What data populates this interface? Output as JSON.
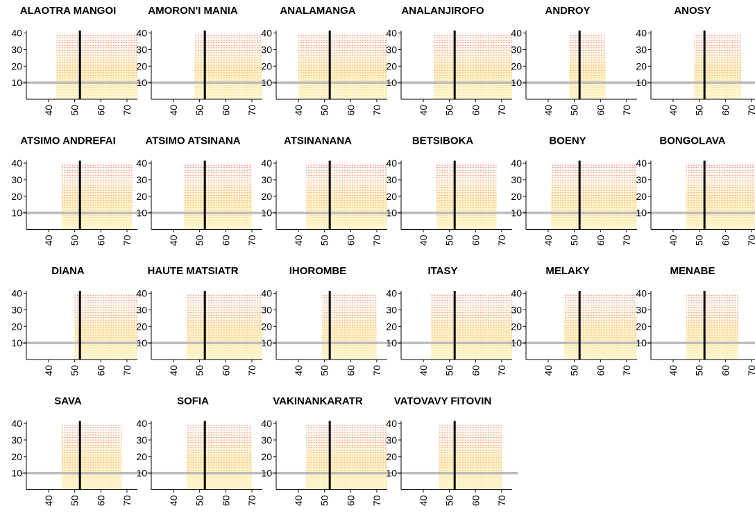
{
  "chart_data": {
    "type": "heatmap",
    "xlim": [
      31.5,
      74
    ],
    "ylim": [
      0,
      41.5
    ],
    "xticks": [
      40,
      50,
      60,
      70
    ],
    "yticks": [
      10,
      20,
      30,
      40
    ],
    "vline": 52,
    "hline": 10,
    "panels": [
      {
        "title": "ALAOTRA MANGOI",
        "x_range": [
          43,
          74
        ]
      },
      {
        "title": "AMORON'I MANIA",
        "x_range": [
          48,
          74
        ]
      },
      {
        "title": "ANALAMANGA",
        "x_range": [
          40,
          74
        ]
      },
      {
        "title": "ANALANJIROFO",
        "x_range": [
          44,
          74
        ]
      },
      {
        "title": "ANDROY",
        "x_range": [
          48,
          62
        ]
      },
      {
        "title": "ANOSY",
        "x_range": [
          48,
          66
        ]
      },
      {
        "title": "ATSIMO ANDREFAI",
        "x_range": [
          45,
          72
        ]
      },
      {
        "title": "ATSIMO ATSINANA",
        "x_range": [
          44,
          70
        ]
      },
      {
        "title": "ATSINANANA",
        "x_range": [
          43,
          74
        ]
      },
      {
        "title": "BETSIBOKA",
        "x_range": [
          45,
          68
        ]
      },
      {
        "title": "BOENY",
        "x_range": [
          41,
          74
        ]
      },
      {
        "title": "BONGOLAVA",
        "x_range": [
          45,
          74
        ]
      },
      {
        "title": "DIANA",
        "x_range": [
          50,
          74
        ]
      },
      {
        "title": "HAUTE MATSIATR",
        "x_range": [
          45,
          74
        ]
      },
      {
        "title": "IHOROMBE",
        "x_range": [
          49,
          70
        ]
      },
      {
        "title": "ITASY",
        "x_range": [
          43,
          74
        ]
      },
      {
        "title": "MELAKY",
        "x_range": [
          46,
          74
        ]
      },
      {
        "title": "MENABE",
        "x_range": [
          45,
          65
        ]
      },
      {
        "title": "SAVA",
        "x_range": [
          45,
          68
        ]
      },
      {
        "title": "SOFIA",
        "x_range": [
          45,
          70
        ]
      },
      {
        "title": "VAKINANKARATR",
        "x_range": [
          43,
          74
        ]
      },
      {
        "title": "VATOVAVY FITOVIN",
        "x_range": [
          46,
          70
        ]
      }
    ]
  }
}
